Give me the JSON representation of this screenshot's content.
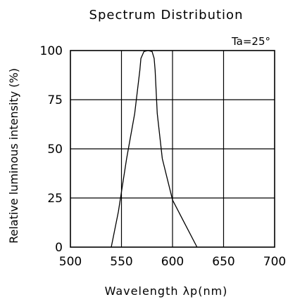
{
  "chart_data": {
    "type": "line",
    "title": "Spectrum Distribution",
    "annotation": "Ta=25°",
    "xlabel": "Wavelength λp(nm)",
    "ylabel": "Relative luminous intensity (%)",
    "xlim": [
      500,
      700
    ],
    "ylim": [
      0,
      100
    ],
    "xticks": [
      "500",
      "550",
      "600",
      "650",
      "700"
    ],
    "yticks": [
      "0",
      "25",
      "50",
      "75",
      "100"
    ],
    "grid": true,
    "series": [
      {
        "x": [
          540,
          547,
          555,
          563,
          568,
          569,
          572,
          576,
          580,
          582,
          583,
          585,
          590,
          600,
          612,
          624
        ],
        "y": [
          0,
          18,
          45,
          68,
          90,
          96,
          99.5,
          100,
          99.5,
          96,
          90,
          68,
          45,
          24,
          12,
          0
        ]
      }
    ]
  }
}
